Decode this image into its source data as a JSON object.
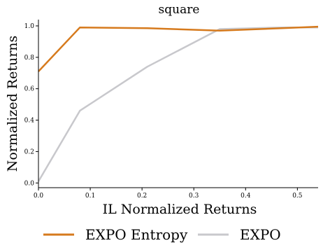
{
  "chart_data": {
    "type": "line",
    "title": "square",
    "xlabel": "IL Normalized Returns",
    "ylabel": "Normalized Returns",
    "xlim": [
      0.0,
      0.54
    ],
    "ylim": [
      -0.03,
      1.04
    ],
    "xticks": [
      0.0,
      0.1,
      0.2,
      0.3,
      0.4,
      0.5
    ],
    "xtick_labels": [
      "0.0",
      "0.1",
      "0.2",
      "0.3",
      "0.4",
      "0.5"
    ],
    "yticks": [
      0.0,
      0.2,
      0.4,
      0.6,
      0.8,
      1.0
    ],
    "ytick_labels": [
      "0.0",
      "0.2",
      "0.4",
      "0.6",
      "0.8",
      "1.0"
    ],
    "grid": false,
    "legend_position": "bottom",
    "series": [
      {
        "name": "EXPO Entropy",
        "color": "#d67a1d",
        "x": [
          0.0,
          0.08,
          0.21,
          0.35,
          0.47,
          0.54
        ],
        "y": [
          0.71,
          0.99,
          0.985,
          0.97,
          0.985,
          0.995
        ]
      },
      {
        "name": "EXPO",
        "color": "#c8c8cc",
        "x": [
          0.0,
          0.08,
          0.21,
          0.35,
          0.47,
          0.54
        ],
        "y": [
          0.01,
          0.46,
          0.74,
          0.98,
          0.99,
          0.99
        ]
      }
    ]
  }
}
